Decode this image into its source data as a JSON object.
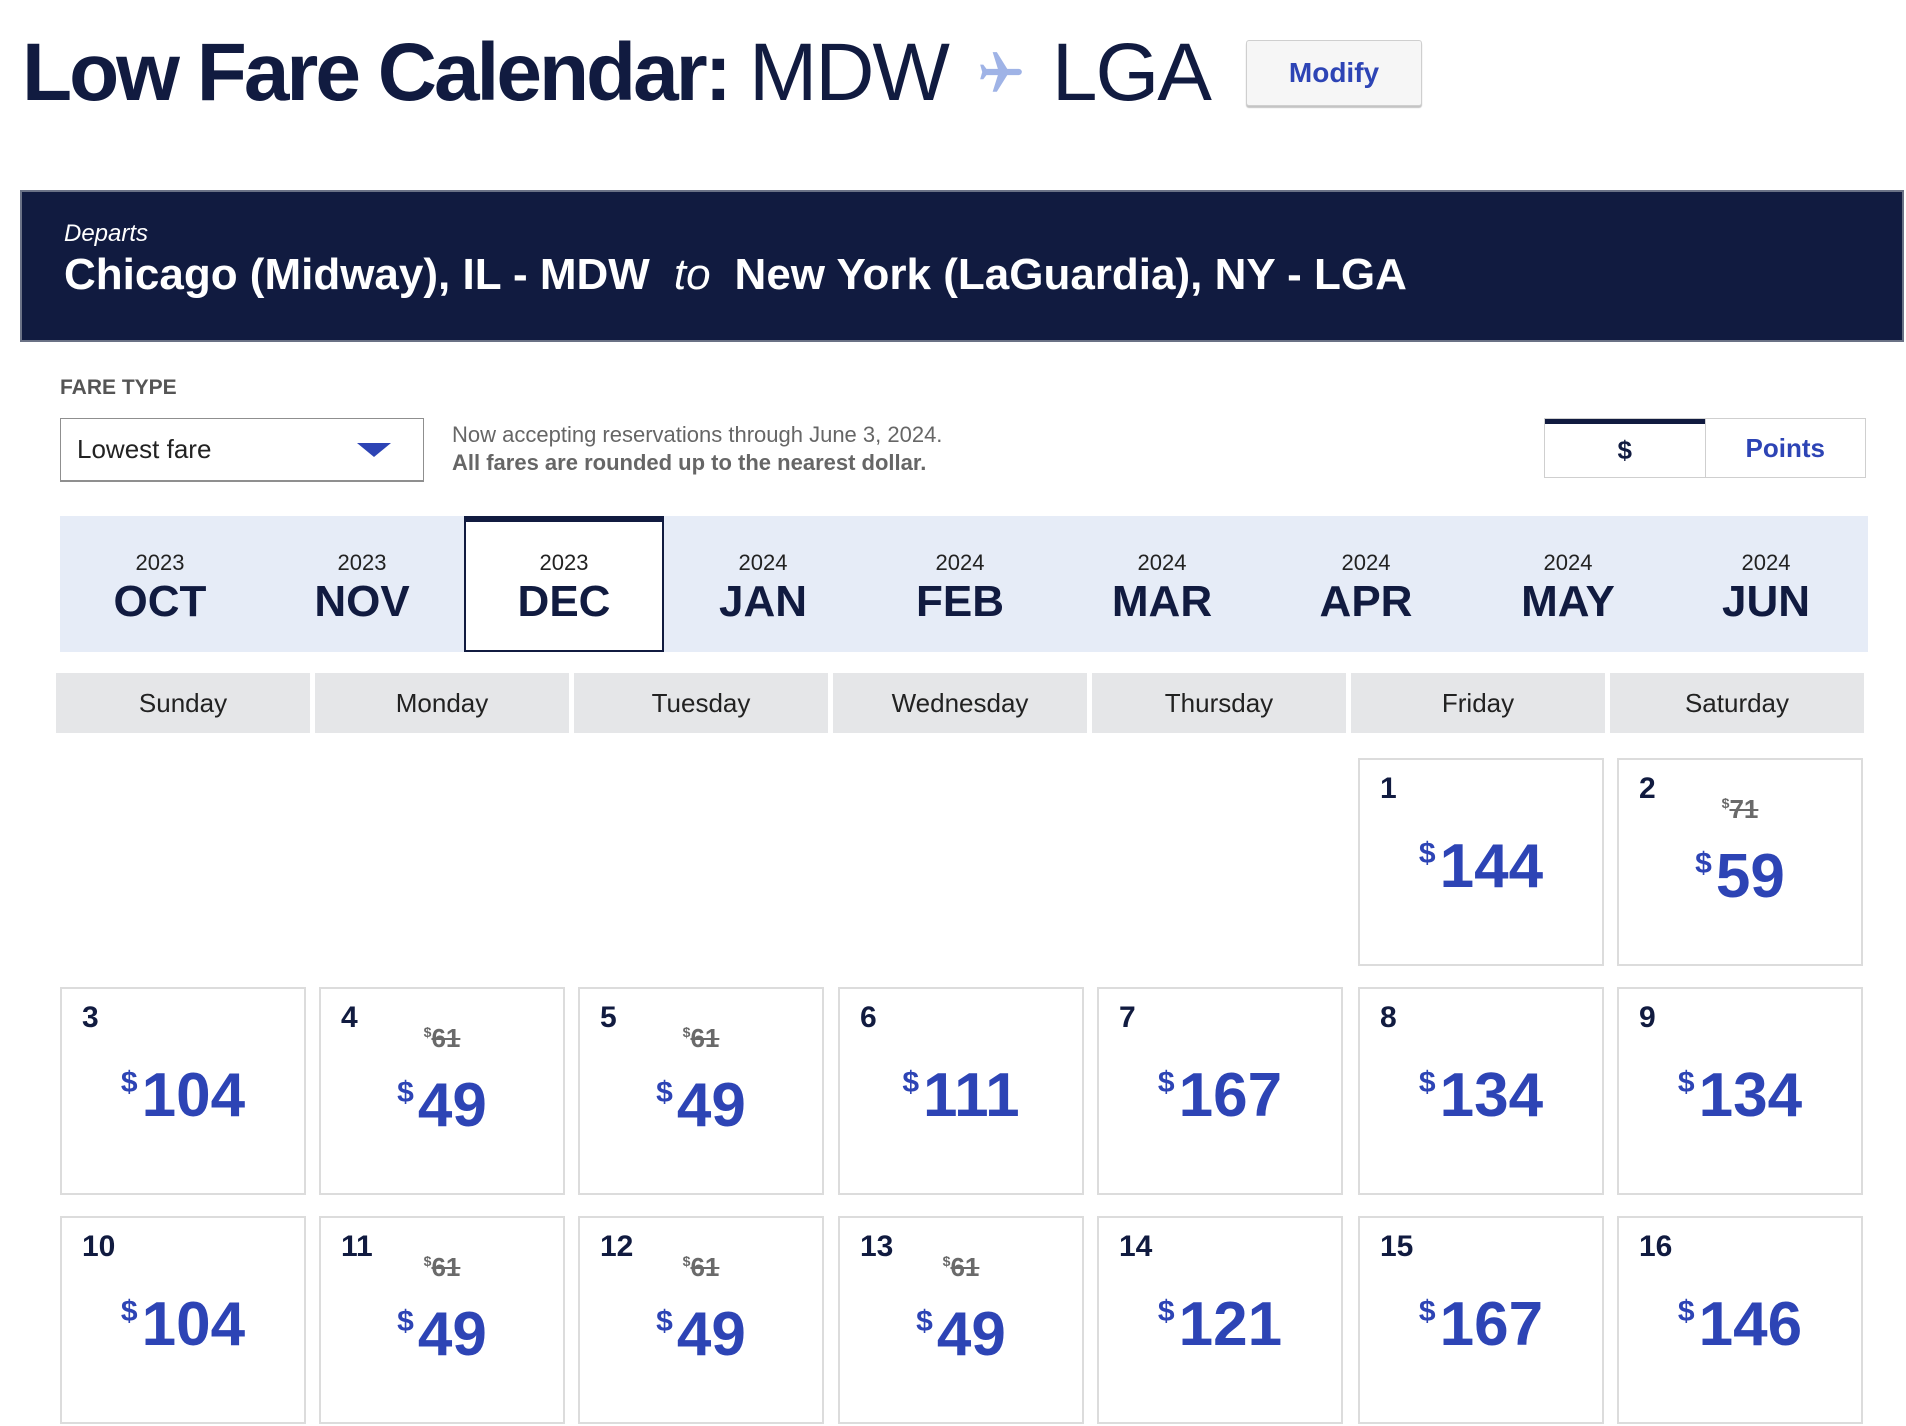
{
  "header": {
    "title_prefix": "Low Fare Calendar:",
    "origin_code": "MDW",
    "destination_code": "LGA",
    "modify_label": "Modify",
    "plane_icon": "plane-icon"
  },
  "banner": {
    "departs_label": "Departs",
    "origin": "Chicago (Midway), IL - MDW",
    "to_label": "to",
    "destination": "New York (LaGuardia), NY - LGA"
  },
  "fare_type": {
    "label": "FARE TYPE",
    "selected": "Lowest fare"
  },
  "notice": {
    "line1": "Now accepting reservations through June 3, 2024.",
    "line2": "All fares are rounded up to the nearest dollar."
  },
  "currency_toggle": {
    "dollars_label": "$",
    "points_label": "Points",
    "active": "dollars"
  },
  "months": [
    {
      "year": "2023",
      "month": "OCT"
    },
    {
      "year": "2023",
      "month": "NOV"
    },
    {
      "year": "2023",
      "month": "DEC",
      "active": true
    },
    {
      "year": "2024",
      "month": "JAN"
    },
    {
      "year": "2024",
      "month": "FEB"
    },
    {
      "year": "2024",
      "month": "MAR"
    },
    {
      "year": "2024",
      "month": "APR"
    },
    {
      "year": "2024",
      "month": "MAY"
    },
    {
      "year": "2024",
      "month": "JUN"
    }
  ],
  "weekdays": [
    "Sunday",
    "Monday",
    "Tuesday",
    "Wednesday",
    "Thursday",
    "Friday",
    "Saturday"
  ],
  "days": [
    {
      "day": "1",
      "currency": "$",
      "price": "144",
      "original_price": null
    },
    {
      "day": "2",
      "currency": "$",
      "price": "59",
      "original_price": "71"
    },
    {
      "day": "3",
      "currency": "$",
      "price": "104",
      "original_price": null
    },
    {
      "day": "4",
      "currency": "$",
      "price": "49",
      "original_price": "61"
    },
    {
      "day": "5",
      "currency": "$",
      "price": "49",
      "original_price": "61"
    },
    {
      "day": "6",
      "currency": "$",
      "price": "111",
      "original_price": null
    },
    {
      "day": "7",
      "currency": "$",
      "price": "167",
      "original_price": null
    },
    {
      "day": "8",
      "currency": "$",
      "price": "134",
      "original_price": null
    },
    {
      "day": "9",
      "currency": "$",
      "price": "134",
      "original_price": null
    },
    {
      "day": "10",
      "currency": "$",
      "price": "104",
      "original_price": null
    },
    {
      "day": "11",
      "currency": "$",
      "price": "49",
      "original_price": "61"
    },
    {
      "day": "12",
      "currency": "$",
      "price": "49",
      "original_price": "61"
    },
    {
      "day": "13",
      "currency": "$",
      "price": "49",
      "original_price": "61"
    },
    {
      "day": "14",
      "currency": "$",
      "price": "121",
      "original_price": null
    },
    {
      "day": "15",
      "currency": "$",
      "price": "167",
      "original_price": null
    },
    {
      "day": "16",
      "currency": "$",
      "price": "146",
      "original_price": null
    }
  ],
  "colors": {
    "navy": "#111b40",
    "accent_blue": "#2d44b5",
    "month_strip_bg": "#e6ecf7",
    "weekday_bg": "#e5e6e8"
  }
}
